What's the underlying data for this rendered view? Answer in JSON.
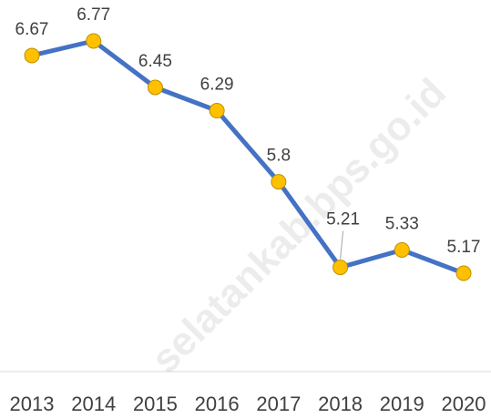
{
  "chart_data": {
    "type": "line",
    "categories": [
      "2013",
      "2014",
      "2015",
      "2016",
      "2017",
      "2018",
      "2019",
      "2020"
    ],
    "series": [
      {
        "color": "#4472c4",
        "marker_color": "#ffc000",
        "values": [
          6.67,
          6.77,
          6.45,
          6.29,
          5.8,
          5.21,
          5.33,
          5.17
        ]
      }
    ],
    "watermark": "selatankab.bps.go.id"
  }
}
